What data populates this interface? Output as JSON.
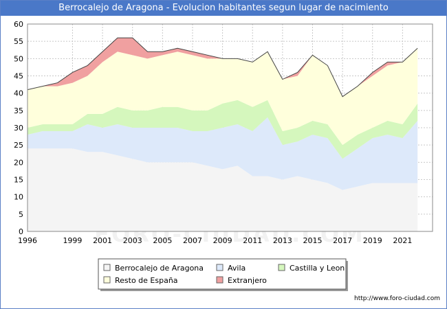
{
  "chart_data": {
    "type": "area",
    "title": "Berrocalejo de Aragona - Evolucion habitantes segun lugar de nacimiento",
    "xlabel": "",
    "ylabel": "",
    "ylim": [
      0,
      60
    ],
    "xlim": [
      1996,
      2023
    ],
    "grid": true,
    "stacked": true,
    "x_tick_labels": [
      "1996",
      "1999",
      "2001",
      "2003",
      "2005",
      "2007",
      "2009",
      "2011",
      "2013",
      "2015",
      "2017",
      "2019",
      "2021"
    ],
    "y_tick_labels": [
      "0",
      "5",
      "10",
      "15",
      "20",
      "25",
      "30",
      "35",
      "40",
      "45",
      "50",
      "55",
      "60"
    ],
    "x": [
      1996,
      1997,
      1998,
      1999,
      2000,
      2001,
      2002,
      2003,
      2004,
      2005,
      2006,
      2007,
      2008,
      2009,
      2010,
      2011,
      2012,
      2013,
      2014,
      2015,
      2016,
      2017,
      2018,
      2019,
      2020,
      2021,
      2022
    ],
    "series": [
      {
        "name": "Berrocalejo de Aragona",
        "color": "#f4f4f4",
        "values": [
          24,
          24,
          24,
          24,
          23,
          23,
          22,
          21,
          20,
          20,
          20,
          20,
          19,
          18,
          19,
          16,
          16,
          15,
          16,
          15,
          14,
          12,
          13,
          14,
          14,
          14,
          14
        ]
      },
      {
        "name": "Avila",
        "color": "#dde9fa",
        "values": [
          4,
          5,
          5,
          5,
          8,
          7,
          9,
          9,
          10,
          10,
          10,
          9,
          10,
          12,
          12,
          13,
          17,
          10,
          10,
          13,
          13,
          9,
          11,
          13,
          14,
          13,
          18
        ]
      },
      {
        "name": "Castilla y Leon",
        "color": "#d5f7bd",
        "values": [
          2,
          2,
          2,
          2,
          3,
          4,
          5,
          5,
          5,
          6,
          6,
          6,
          6,
          7,
          7,
          7,
          5,
          4,
          4,
          4,
          4,
          4,
          4,
          3,
          4,
          4,
          5
        ]
      },
      {
        "name": "Resto de España",
        "color": "#ffffdc",
        "values": [
          11,
          11,
          11,
          12,
          11,
          15,
          16,
          16,
          15,
          15,
          16,
          16,
          15,
          13,
          12,
          13,
          14,
          15,
          15,
          19,
          17,
          14,
          14,
          15,
          16,
          18,
          16
        ]
      },
      {
        "name": "Extranjero",
        "color": "#f0a0a0",
        "values": [
          0,
          0,
          1,
          3,
          3,
          3,
          4,
          5,
          2,
          1,
          1,
          1,
          1,
          0,
          0,
          0,
          0,
          0,
          1,
          0,
          0,
          0,
          0,
          1,
          1,
          0,
          0
        ]
      }
    ],
    "legend_position": "bottom"
  },
  "source": "http://www.foro-ciudad.com",
  "watermark": "FORO-CIUDAD.COM"
}
